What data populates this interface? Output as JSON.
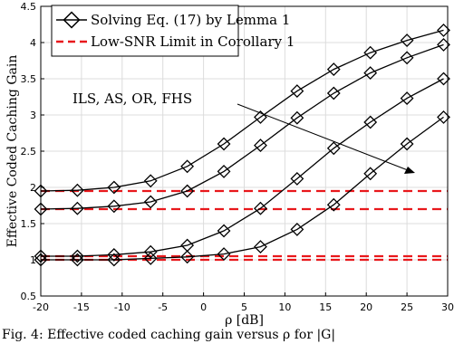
{
  "chart_data": {
    "type": "line",
    "xlabel": "ρ [dB]",
    "ylabel": "Effective Coded Caching Gain",
    "xlim": [
      -20,
      30
    ],
    "ylim": [
      0.5,
      4.5
    ],
    "xticks": [
      "-20",
      "-15",
      "-10",
      "-5",
      "0",
      "5",
      "10",
      "15",
      "20",
      "25",
      "30"
    ],
    "yticks": [
      "0.5",
      "1",
      "1.5",
      "2",
      "2.5",
      "3",
      "3.5",
      "4",
      "4.5"
    ],
    "grid": true,
    "legend": {
      "placement": "top-left",
      "entries": [
        "Solving Eq. (17) by Lemma 1",
        "Low-SNR Limit in Corollary 1"
      ]
    },
    "annotation": {
      "text": "ILS, AS, OR, FHS"
    },
    "x": [
      -20,
      -15.5,
      -11,
      -6.5,
      -2,
      2.5,
      7,
      11.5,
      16,
      20.5,
      25,
      29.5
    ],
    "series": [
      {
        "values": [
          1.95,
          1.96,
          2.0,
          2.09,
          2.29,
          2.6,
          2.97,
          3.33,
          3.63,
          3.86,
          4.03,
          4.17
        ]
      },
      {
        "values": [
          1.7,
          1.71,
          1.74,
          1.8,
          1.95,
          2.22,
          2.58,
          2.96,
          3.3,
          3.58,
          3.79,
          3.97
        ]
      },
      {
        "values": [
          1.05,
          1.05,
          1.07,
          1.11,
          1.2,
          1.4,
          1.71,
          2.12,
          2.54,
          2.9,
          3.23,
          3.5
        ]
      },
      {
        "values": [
          1.0,
          1.0,
          1.0,
          1.02,
          1.04,
          1.08,
          1.18,
          1.42,
          1.76,
          2.19,
          2.6,
          2.97
        ]
      }
    ],
    "limits": [
      1.95,
      1.7,
      1.05,
      1.0
    ]
  },
  "caption": "Fig. 4: Effective coded caching gain versus ρ for |G|"
}
